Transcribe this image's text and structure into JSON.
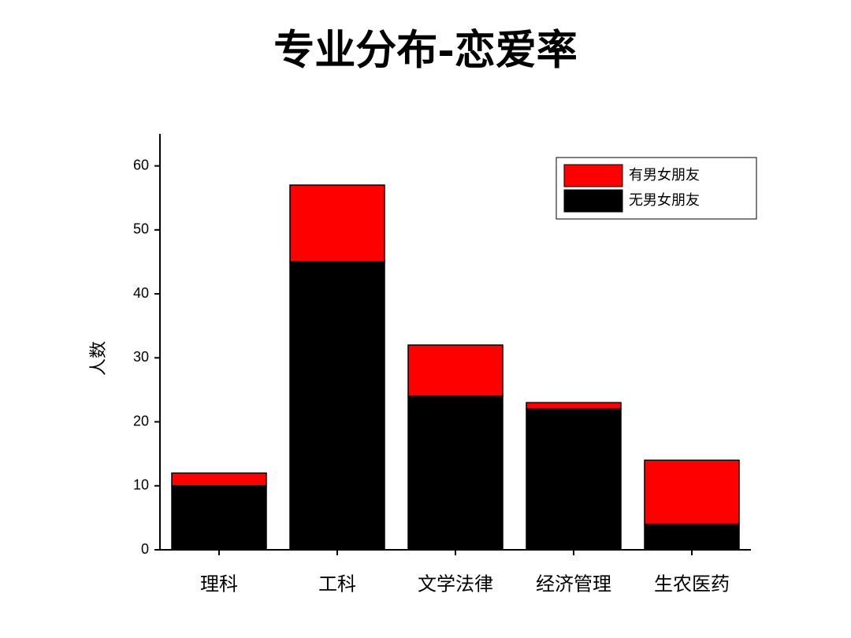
{
  "chart_data": {
    "type": "stacked_bar",
    "title": "专业分布-恋爱率",
    "y_label": "人数",
    "categories": [
      "理科",
      "工科",
      "文学法律",
      "经济管理",
      "生农医药"
    ],
    "series": [
      {
        "name": "无男女朋友",
        "color": "#000000",
        "values": [
          10,
          45,
          24,
          22,
          4
        ]
      },
      {
        "name": "有男女朋友",
        "color": "#ff0000",
        "values": [
          2,
          12,
          8,
          1,
          10
        ]
      }
    ],
    "ylim": [
      0,
      65
    ],
    "yticks": [
      0,
      10,
      20,
      30,
      40,
      50,
      60
    ],
    "grid": false,
    "legend": "upper right"
  }
}
